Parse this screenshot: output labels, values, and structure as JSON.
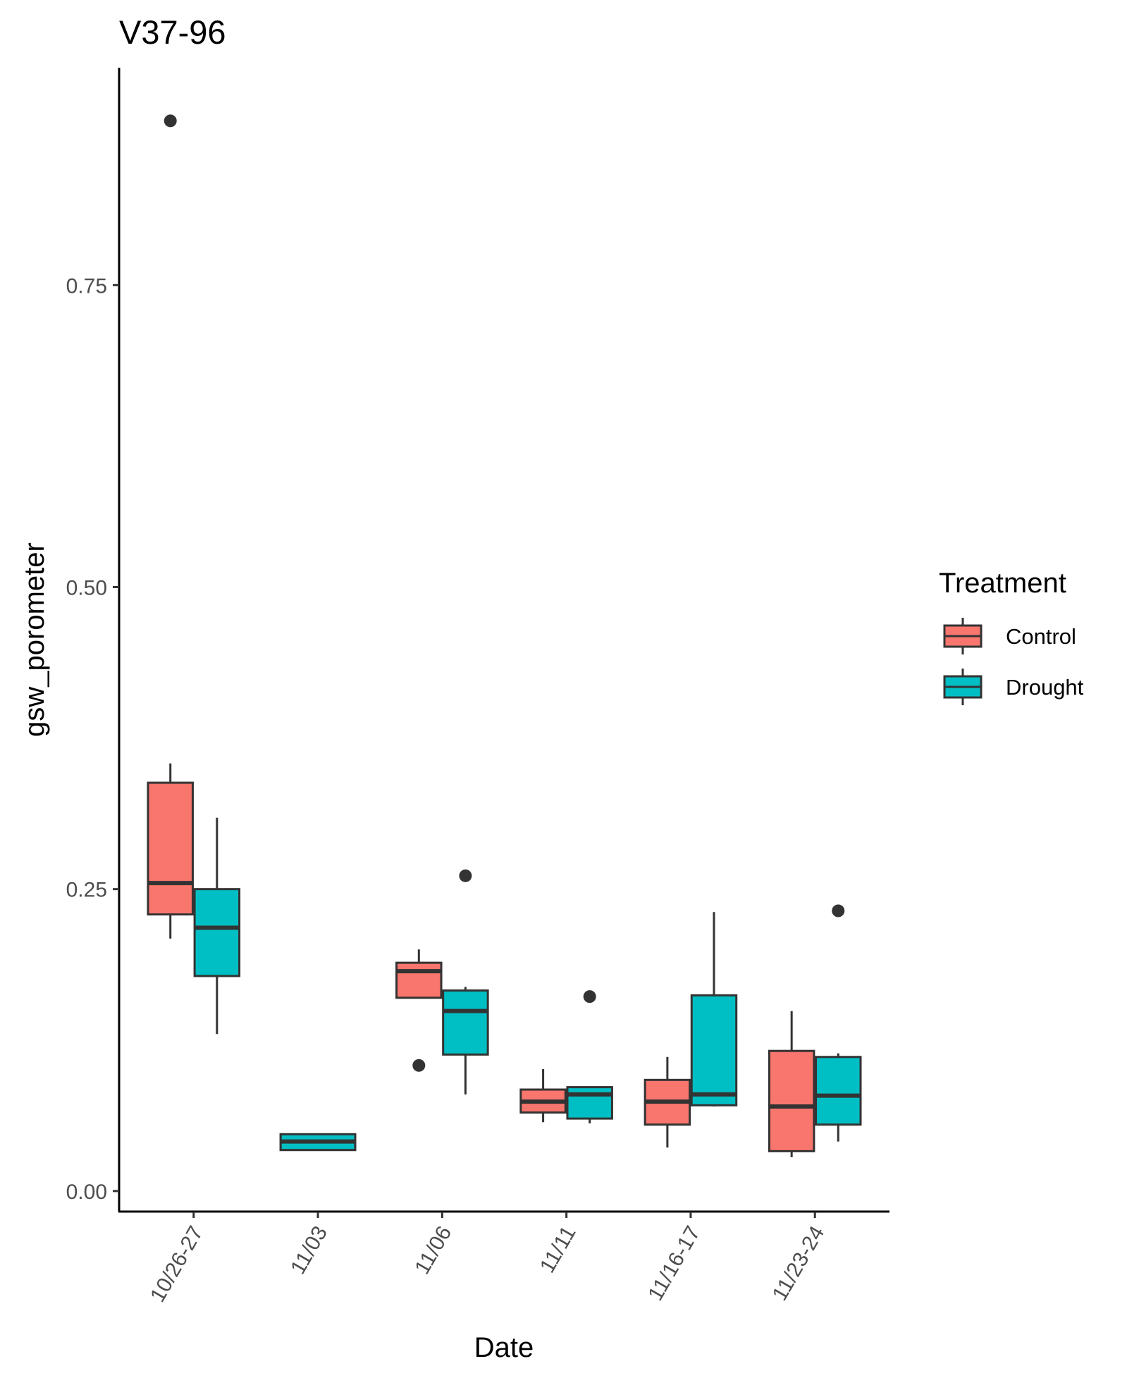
{
  "chart_data": {
    "type": "boxplot",
    "title": "V37-96",
    "xlabel": "Date",
    "ylabel": "gsw_porometer",
    "ylim": [
      -0.017,
      0.93
    ],
    "yticks": [
      "0.00",
      "0.25",
      "0.50",
      "0.75"
    ],
    "ytick_values": [
      0.0,
      0.25,
      0.5,
      0.75
    ],
    "categories": [
      "10/26-27",
      "11/03",
      "11/06",
      "11/11",
      "11/16-17",
      "11/23-24"
    ],
    "legend": {
      "title": "Treatment",
      "position": "right"
    },
    "grid": false,
    "series": [
      {
        "name": "Control",
        "color": "#F8766D",
        "boxes": [
          {
            "category": "10/26-27",
            "min": 0.209,
            "q1": 0.229,
            "median": 0.255,
            "q3": 0.338,
            "max": 0.354,
            "outliers": [
              0.886
            ]
          },
          {
            "category": "11/03",
            "dodged": false,
            "min": 0.034,
            "q1": 0.034,
            "median": 0.041,
            "q3": 0.047,
            "max": 0.047,
            "outliers": []
          },
          {
            "category": "11/06",
            "min": 0.16,
            "q1": 0.16,
            "median": 0.182,
            "q3": 0.189,
            "max": 0.2,
            "outliers": [
              0.104
            ]
          },
          {
            "category": "11/11",
            "min": 0.057,
            "q1": 0.065,
            "median": 0.074,
            "q3": 0.084,
            "max": 0.101,
            "outliers": []
          },
          {
            "category": "11/16-17",
            "min": 0.036,
            "q1": 0.055,
            "median": 0.074,
            "q3": 0.092,
            "max": 0.111,
            "outliers": []
          },
          {
            "category": "11/23-24",
            "min": 0.028,
            "q1": 0.033,
            "median": 0.07,
            "q3": 0.116,
            "max": 0.149,
            "outliers": []
          }
        ]
      },
      {
        "name": "Drought",
        "color": "#00BFC4",
        "boxes": [
          {
            "category": "10/26-27",
            "min": 0.13,
            "q1": 0.178,
            "median": 0.218,
            "q3": 0.25,
            "max": 0.309,
            "outliers": []
          },
          {
            "category": "11/03",
            "dodged": false,
            "min": 0.034,
            "q1": 0.034,
            "median": 0.041,
            "q3": 0.047,
            "max": 0.047,
            "outliers": []
          },
          {
            "category": "11/06",
            "min": 0.08,
            "q1": 0.113,
            "median": 0.149,
            "q3": 0.166,
            "max": 0.169,
            "outliers": [
              0.261
            ]
          },
          {
            "category": "11/11",
            "min": 0.056,
            "q1": 0.06,
            "median": 0.08,
            "q3": 0.086,
            "max": 0.086,
            "outliers": [
              0.161
            ]
          },
          {
            "category": "11/16-17",
            "min": 0.07,
            "q1": 0.071,
            "median": 0.08,
            "q3": 0.162,
            "max": 0.231,
            "outliers": []
          },
          {
            "category": "11/23-24",
            "min": 0.041,
            "q1": 0.055,
            "median": 0.079,
            "q3": 0.111,
            "max": 0.114,
            "outliers": [
              0.232
            ]
          }
        ]
      }
    ]
  }
}
